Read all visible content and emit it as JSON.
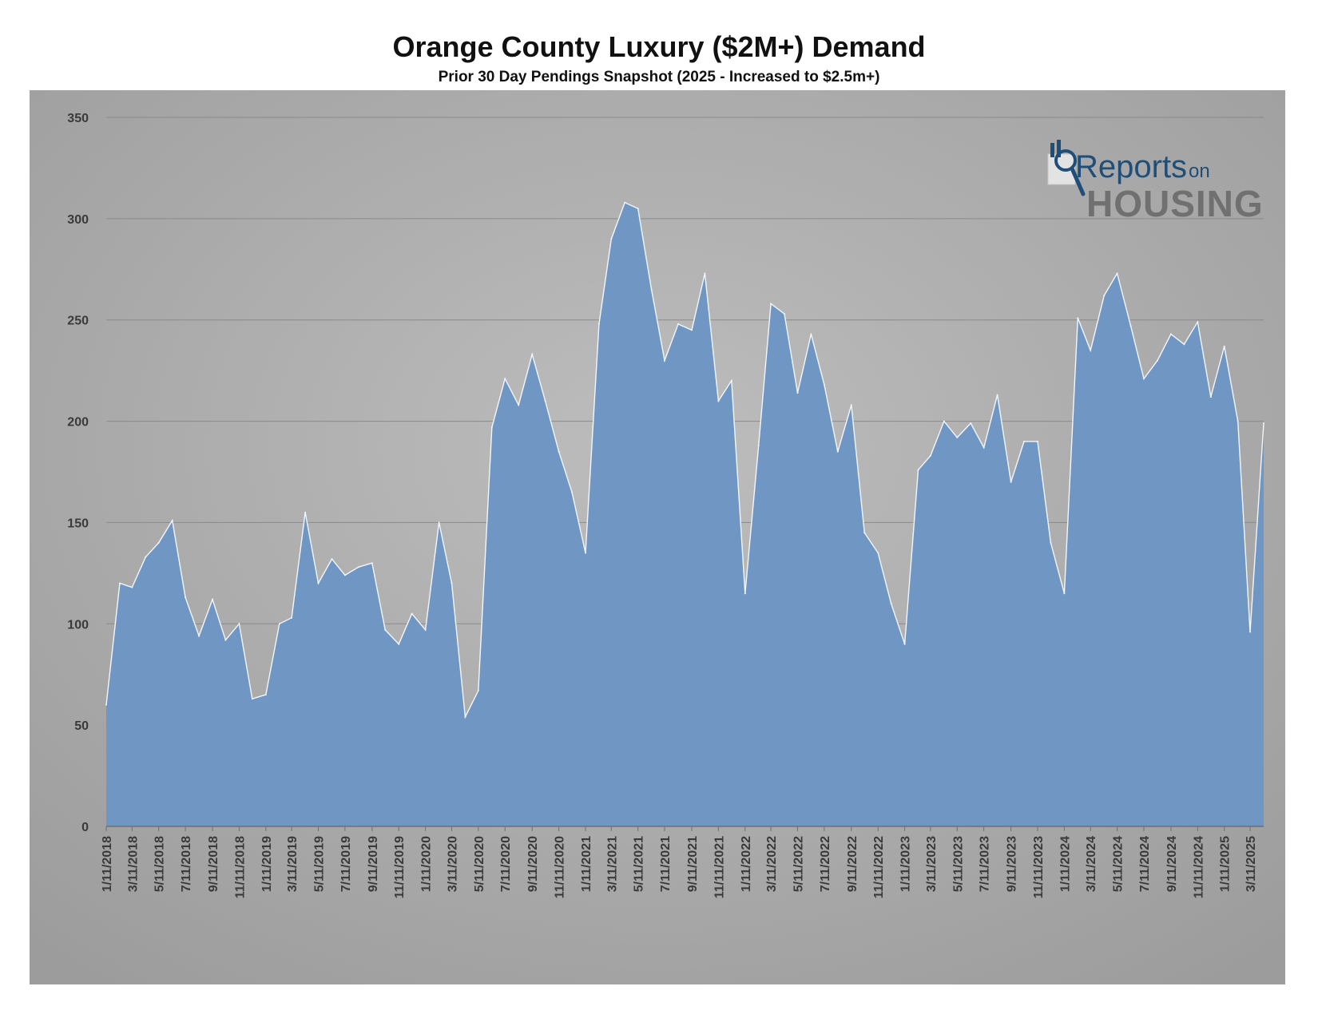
{
  "colors": {
    "area_fill": "#7097c4",
    "area_stroke": "#f2f6fb",
    "gridline": "#8a8a8a",
    "axis_text": "#3a3a3a",
    "logo_blue": "#1f4e79",
    "logo_gray": "#707070"
  },
  "logo": {
    "line1": "Reports",
    "line1_small": "on",
    "line2": "HOUSING"
  },
  "chart_data": {
    "type": "area",
    "title": "Orange County Luxury ($2M+) Demand",
    "subtitle": "Prior 30 Day Pendings Snapshot (2025 - Increased to $2.5m+)",
    "xlabel": "",
    "ylabel": "",
    "ylim": [
      0,
      350
    ],
    "yticks": [
      0,
      50,
      100,
      150,
      200,
      250,
      300,
      350
    ],
    "grid": true,
    "legend": "none",
    "x_tick_labels": [
      "1/11/2018",
      "3/11/2018",
      "5/11/2018",
      "7/11/2018",
      "9/11/2018",
      "11/11/2018",
      "1/11/2019",
      "3/11/2019",
      "5/11/2019",
      "7/11/2019",
      "9/11/2019",
      "11/11/2019",
      "1/11/2020",
      "3/11/2020",
      "5/11/2020",
      "7/11/2020",
      "9/11/2020",
      "11/11/2020",
      "1/11/2021",
      "3/11/2021",
      "5/11/2021",
      "7/11/2021",
      "9/11/2021",
      "11/11/2021",
      "1/11/2022",
      "3/11/2022",
      "5/11/2022",
      "7/11/2022",
      "9/11/2022",
      "11/11/2022",
      "1/11/2023",
      "3/11/2023",
      "5/11/2023",
      "7/11/2023",
      "9/11/2023",
      "11/11/2023",
      "1/11/2024",
      "3/11/2024",
      "5/11/2024",
      "7/11/2024",
      "9/11/2024",
      "11/11/2024",
      "1/11/2025",
      "3/11/2025"
    ],
    "series": [
      {
        "name": "",
        "values": [
          {
            "x": "2018-01-11",
            "y": 60
          },
          {
            "x": "2018-02-11",
            "y": 120
          },
          {
            "x": "2018-03-11",
            "y": 118
          },
          {
            "x": "2018-04-11",
            "y": 133
          },
          {
            "x": "2018-05-11",
            "y": 140
          },
          {
            "x": "2018-06-11",
            "y": 151
          },
          {
            "x": "2018-07-11",
            "y": 113
          },
          {
            "x": "2018-08-11",
            "y": 94
          },
          {
            "x": "2018-09-11",
            "y": 112
          },
          {
            "x": "2018-10-11",
            "y": 92
          },
          {
            "x": "2018-11-11",
            "y": 100
          },
          {
            "x": "2018-12-11",
            "y": 63
          },
          {
            "x": "2019-01-11",
            "y": 65
          },
          {
            "x": "2019-02-11",
            "y": 100
          },
          {
            "x": "2019-03-11",
            "y": 103
          },
          {
            "x": "2019-04-11",
            "y": 155
          },
          {
            "x": "2019-05-11",
            "y": 120
          },
          {
            "x": "2019-06-11",
            "y": 132
          },
          {
            "x": "2019-07-11",
            "y": 124
          },
          {
            "x": "2019-08-11",
            "y": 128
          },
          {
            "x": "2019-09-11",
            "y": 130
          },
          {
            "x": "2019-10-11",
            "y": 97
          },
          {
            "x": "2019-11-11",
            "y": 90
          },
          {
            "x": "2019-12-11",
            "y": 105
          },
          {
            "x": "2020-01-11",
            "y": 97
          },
          {
            "x": "2020-02-11",
            "y": 150
          },
          {
            "x": "2020-03-11",
            "y": 120
          },
          {
            "x": "2020-04-11",
            "y": 54
          },
          {
            "x": "2020-05-11",
            "y": 67
          },
          {
            "x": "2020-06-11",
            "y": 197
          },
          {
            "x": "2020-07-11",
            "y": 221
          },
          {
            "x": "2020-08-11",
            "y": 208
          },
          {
            "x": "2020-09-11",
            "y": 233
          },
          {
            "x": "2020-10-11",
            "y": 210
          },
          {
            "x": "2020-11-11",
            "y": 185
          },
          {
            "x": "2020-12-11",
            "y": 165
          },
          {
            "x": "2021-01-11",
            "y": 135
          },
          {
            "x": "2021-02-11",
            "y": 248
          },
          {
            "x": "2021-03-11",
            "y": 290
          },
          {
            "x": "2021-04-11",
            "y": 308
          },
          {
            "x": "2021-05-11",
            "y": 305
          },
          {
            "x": "2021-06-11",
            "y": 265
          },
          {
            "x": "2021-07-11",
            "y": 230
          },
          {
            "x": "2021-08-11",
            "y": 248
          },
          {
            "x": "2021-09-11",
            "y": 245
          },
          {
            "x": "2021-10-11",
            "y": 273
          },
          {
            "x": "2021-11-11",
            "y": 210
          },
          {
            "x": "2021-12-11",
            "y": 220
          },
          {
            "x": "2022-01-11",
            "y": 115
          },
          {
            "x": "2022-02-11",
            "y": 188
          },
          {
            "x": "2022-03-11",
            "y": 258
          },
          {
            "x": "2022-04-11",
            "y": 253
          },
          {
            "x": "2022-05-11",
            "y": 214
          },
          {
            "x": "2022-06-11",
            "y": 243
          },
          {
            "x": "2022-07-11",
            "y": 218
          },
          {
            "x": "2022-08-11",
            "y": 185
          },
          {
            "x": "2022-09-11",
            "y": 208
          },
          {
            "x": "2022-10-11",
            "y": 145
          },
          {
            "x": "2022-11-11",
            "y": 135
          },
          {
            "x": "2022-12-11",
            "y": 110
          },
          {
            "x": "2023-01-11",
            "y": 90
          },
          {
            "x": "2023-02-11",
            "y": 176
          },
          {
            "x": "2023-03-11",
            "y": 183
          },
          {
            "x": "2023-04-11",
            "y": 200
          },
          {
            "x": "2023-05-11",
            "y": 192
          },
          {
            "x": "2023-06-11",
            "y": 199
          },
          {
            "x": "2023-07-11",
            "y": 187
          },
          {
            "x": "2023-08-11",
            "y": 213
          },
          {
            "x": "2023-09-11",
            "y": 170
          },
          {
            "x": "2023-10-11",
            "y": 190
          },
          {
            "x": "2023-11-11",
            "y": 190
          },
          {
            "x": "2023-12-11",
            "y": 140
          },
          {
            "x": "2024-01-11",
            "y": 115
          },
          {
            "x": "2024-02-11",
            "y": 251
          },
          {
            "x": "2024-03-11",
            "y": 235
          },
          {
            "x": "2024-04-11",
            "y": 262
          },
          {
            "x": "2024-05-11",
            "y": 273
          },
          {
            "x": "2024-06-11",
            "y": 247
          },
          {
            "x": "2024-07-11",
            "y": 221
          },
          {
            "x": "2024-08-11",
            "y": 230
          },
          {
            "x": "2024-09-11",
            "y": 243
          },
          {
            "x": "2024-10-11",
            "y": 238
          },
          {
            "x": "2024-11-11",
            "y": 249
          },
          {
            "x": "2024-12-11",
            "y": 212
          },
          {
            "x": "2025-01-11",
            "y": 237
          },
          {
            "x": "2025-02-11",
            "y": 200
          },
          {
            "x": "2025-03-11",
            "y": 96
          },
          {
            "x": "2025-04-11",
            "y": 199
          }
        ]
      }
    ]
  }
}
